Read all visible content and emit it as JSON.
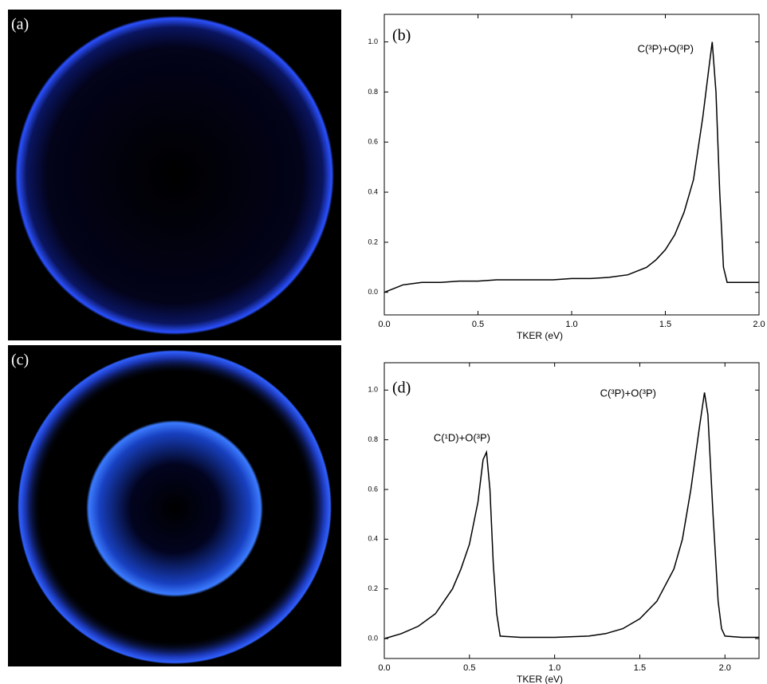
{
  "chart_data": [
    {
      "type": "image",
      "label": "(a)"
    },
    {
      "type": "line",
      "label": "(b)",
      "xlabel": "TKER (eV)",
      "annotations": [
        "C(³P)+O(³P)"
      ],
      "xlim": [
        0,
        2
      ],
      "ylim": [
        -0.09,
        1.11
      ],
      "xticks": [
        {
          "value": 0,
          "label": "0.0"
        },
        0.5,
        {
          "value": 1,
          "label": "1.0"
        },
        1.5,
        {
          "value": 2,
          "label": "2.0"
        }
      ],
      "yticks": [
        {
          "value": 0,
          "label": "0.0"
        },
        0.2,
        0.4,
        0.6,
        0.8,
        {
          "value": 1,
          "label": "1.0"
        }
      ],
      "x": [
        0,
        0.1,
        0.2,
        0.3,
        0.4,
        0.5,
        0.6,
        0.7,
        0.8,
        0.9,
        1.0,
        1.1,
        1.2,
        1.3,
        1.4,
        1.45,
        1.5,
        1.55,
        1.6,
        1.65,
        1.7,
        1.73,
        1.75,
        1.77,
        1.79,
        1.81,
        1.83,
        1.9,
        2.0
      ],
      "series": [
        {
          "color": "#000000",
          "values": [
            0.0,
            0.03,
            0.04,
            0.04,
            0.045,
            0.045,
            0.05,
            0.05,
            0.05,
            0.05,
            0.055,
            0.055,
            0.06,
            0.07,
            0.1,
            0.13,
            0.17,
            0.23,
            0.32,
            0.45,
            0.7,
            0.88,
            1.0,
            0.8,
            0.4,
            0.1,
            0.04,
            0.04,
            0.04
          ]
        }
      ]
    },
    {
      "type": "image",
      "label": "(c)"
    },
    {
      "type": "line",
      "label": "(d)",
      "xlabel": "TKER (eV)",
      "annotations": [
        "C(¹D)+O(³P)",
        "C(³P)+O(³P)"
      ],
      "xlim": [
        0,
        2.2
      ],
      "ylim": [
        -0.08,
        1.11
      ],
      "xticks": [
        {
          "value": 0,
          "label": "0.0"
        },
        0.5,
        {
          "value": 1,
          "label": "1.0"
        },
        1.5,
        {
          "value": 2,
          "label": "2.0"
        }
      ],
      "yticks": [
        {
          "value": 0,
          "label": "0.0"
        },
        0.2,
        0.4,
        0.6,
        0.8,
        {
          "value": 1,
          "label": "1.0"
        }
      ],
      "x": [
        0,
        0.1,
        0.2,
        0.3,
        0.4,
        0.45,
        0.5,
        0.55,
        0.58,
        0.6,
        0.62,
        0.64,
        0.66,
        0.68,
        0.8,
        1.0,
        1.2,
        1.3,
        1.4,
        1.5,
        1.6,
        1.7,
        1.75,
        1.8,
        1.85,
        1.88,
        1.9,
        1.93,
        1.96,
        1.98,
        2.0,
        2.1,
        2.2
      ],
      "series": [
        {
          "color": "#000000",
          "values": [
            0.0,
            0.02,
            0.05,
            0.1,
            0.2,
            0.28,
            0.38,
            0.55,
            0.72,
            0.75,
            0.6,
            0.3,
            0.1,
            0.01,
            0.005,
            0.005,
            0.01,
            0.02,
            0.04,
            0.08,
            0.15,
            0.28,
            0.4,
            0.6,
            0.85,
            0.99,
            0.9,
            0.5,
            0.15,
            0.04,
            0.01,
            0.005,
            0.005
          ]
        }
      ]
    }
  ]
}
